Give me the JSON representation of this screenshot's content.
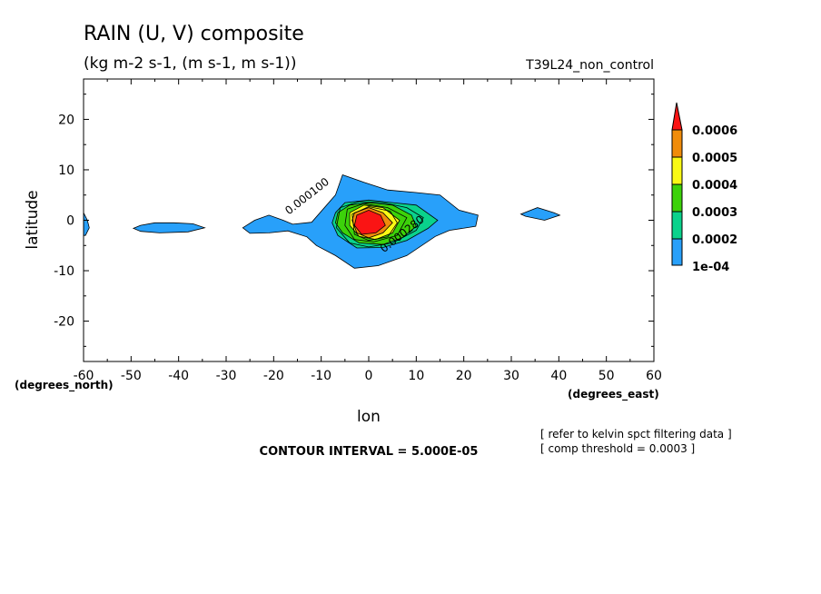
{
  "chart_data": {
    "type": "contour",
    "title": "RAIN (U, V) composite",
    "subtitle": "(kg m-2 s-1, (m s-1, m s-1))",
    "run_label": "T39L24_non_control",
    "xlabel": "lon",
    "ylabel": "latitude",
    "x_unit_label": "(degrees_east)",
    "y_unit_label": "(degrees_north)",
    "xlim": [
      -60,
      60
    ],
    "ylim": [
      -28,
      28
    ],
    "x_ticks": [
      -60,
      -50,
      -40,
      -30,
      -20,
      -10,
      0,
      10,
      20,
      30,
      40,
      50,
      60
    ],
    "y_ticks": [
      -20,
      -10,
      0,
      10,
      20
    ],
    "grid": false,
    "contour_interval_text": "CONTOUR INTERVAL = 5.000E-05",
    "notes": [
      "[ refer to kelvin spct filtering data ]",
      "[ comp threshold = 0.0003 ]"
    ],
    "contour_labels": [
      {
        "text": "0.000100",
        "lon": -12.5,
        "lat": 4.2,
        "angle": -38
      },
      {
        "text": "0.000280",
        "lon": 7.5,
        "lat": -3.3,
        "angle": -38
      }
    ],
    "legend": {
      "placement": "right",
      "labels": [
        "0.0006",
        "0.0005",
        "0.0004",
        "0.0003",
        "0.0002",
        "1e-04"
      ],
      "colors": [
        "#f08c0a",
        "#fafa14",
        "#3cd20a",
        "#0ad28c",
        "#28a0fa"
      ],
      "top_color": "#fa1414"
    },
    "filled_regions": [
      {
        "level": 0.0001,
        "color": "#28a0fa",
        "polygons": [
          [
            [
              -60,
              1.5
            ],
            [
              -59.2,
              0
            ],
            [
              -58.8,
              -1.5
            ],
            [
              -59.6,
              -3
            ],
            [
              -60,
              -3
            ]
          ],
          [
            [
              -48,
              -1.0
            ],
            [
              -45,
              -0.5
            ],
            [
              -41,
              -0.5
            ],
            [
              -37,
              -0.7
            ],
            [
              -34.5,
              -1.5
            ],
            [
              -38,
              -2.3
            ],
            [
              -44,
              -2.5
            ],
            [
              -48,
              -2.2
            ],
            [
              -49.5,
              -1.6
            ]
          ],
          [
            [
              -26.5,
              -1.5
            ],
            [
              -24,
              0
            ],
            [
              -21,
              1
            ],
            [
              -18,
              0
            ],
            [
              -16,
              -0.8
            ],
            [
              -12,
              -0.4
            ],
            [
              -7,
              5
            ],
            [
              -5.5,
              9
            ],
            [
              -1,
              7.5
            ],
            [
              4,
              6
            ],
            [
              10,
              5.5
            ],
            [
              15,
              5
            ],
            [
              19,
              2
            ],
            [
              23,
              1
            ],
            [
              22.5,
              -1.2
            ],
            [
              17,
              -2
            ],
            [
              14,
              -3.2
            ],
            [
              8,
              -7
            ],
            [
              2,
              -9
            ],
            [
              -3,
              -9.5
            ],
            [
              -7,
              -7
            ],
            [
              -11,
              -5
            ],
            [
              -13,
              -3.3
            ],
            [
              -17,
              -2.1
            ],
            [
              -21,
              -2.5
            ],
            [
              -25,
              -2.6
            ]
          ],
          [
            [
              32,
              1.2
            ],
            [
              35.5,
              2.5
            ],
            [
              39,
              1.5
            ],
            [
              40.2,
              1
            ],
            [
              37,
              0
            ],
            [
              33,
              0.8
            ]
          ]
        ]
      },
      {
        "level": 0.0002,
        "color": "#0ad28c",
        "polygons": [
          [
            [
              -7,
              1.5
            ],
            [
              -5,
              3.5
            ],
            [
              0,
              4
            ],
            [
              5,
              3.5
            ],
            [
              10,
              3
            ],
            [
              14.5,
              0
            ],
            [
              12.5,
              -1.6
            ],
            [
              8,
              -4
            ],
            [
              3,
              -5.4
            ],
            [
              -2.5,
              -5.5
            ],
            [
              -6.5,
              -3
            ],
            [
              -7.7,
              -0.5
            ]
          ]
        ]
      },
      {
        "level": 0.0003,
        "color": "#3cd20a",
        "polygons": [
          [
            [
              -6.5,
              1.5
            ],
            [
              -4,
              3
            ],
            [
              0,
              3.5
            ],
            [
              5,
              3
            ],
            [
              9,
              1
            ],
            [
              10,
              -1.2
            ],
            [
              7,
              -3.5
            ],
            [
              3,
              -4.8
            ],
            [
              -2,
              -4.5
            ],
            [
              -5.5,
              -2.5
            ],
            [
              -7,
              -0.5
            ]
          ]
        ]
      },
      {
        "level": 0.0004,
        "color": "#fafa14",
        "polygons": [
          [
            [
              -4,
              1.5
            ],
            [
              -1,
              3
            ],
            [
              3,
              2.5
            ],
            [
              6.5,
              0
            ],
            [
              5,
              -2.5
            ],
            [
              1.5,
              -3.8
            ],
            [
              -2,
              -3.2
            ],
            [
              -4,
              -1
            ]
          ]
        ]
      },
      {
        "level": 0.0005,
        "color": "#f08c0a",
        "polygons": [
          [
            [
              -3,
              1.5
            ],
            [
              0,
              2.5
            ],
            [
              3,
              1.5
            ],
            [
              5,
              -0.5
            ],
            [
              3,
              -2.5
            ],
            [
              0,
              -3.5
            ],
            [
              -2.5,
              -2.5
            ],
            [
              -3.5,
              0
            ]
          ]
        ]
      },
      {
        "level": 0.0006,
        "color": "#fa1414",
        "polygons": [
          [
            [
              -2.5,
              1
            ],
            [
              0,
              2
            ],
            [
              2.5,
              1
            ],
            [
              3.5,
              -1
            ],
            [
              1.5,
              -2.5
            ],
            [
              -1.5,
              -2.8
            ],
            [
              -3,
              -1
            ]
          ]
        ]
      }
    ],
    "contour_lines": [
      [
        [
          -6,
          2.5
        ],
        [
          -2,
          3.7
        ],
        [
          3,
          3.5
        ],
        [
          8,
          2.5
        ],
        [
          11.5,
          0.5
        ],
        [
          10,
          -2
        ],
        [
          5,
          -4.5
        ],
        [
          0,
          -5.3
        ],
        [
          -4,
          -4.5
        ],
        [
          -6.8,
          -1.5
        ]
      ],
      [
        [
          -4.5,
          2.2
        ],
        [
          -1,
          3.3
        ],
        [
          4,
          2.5
        ],
        [
          8,
          0.5
        ],
        [
          6,
          -3
        ],
        [
          1,
          -4.3
        ],
        [
          -3,
          -3.8
        ],
        [
          -5,
          -1
        ]
      ],
      [
        [
          -3.5,
          1.2
        ],
        [
          0,
          2.7
        ],
        [
          4.5,
          1.8
        ],
        [
          6,
          -0.5
        ],
        [
          4,
          -3.3
        ],
        [
          0,
          -4
        ],
        [
          -3,
          -2.8
        ]
      ]
    ]
  }
}
